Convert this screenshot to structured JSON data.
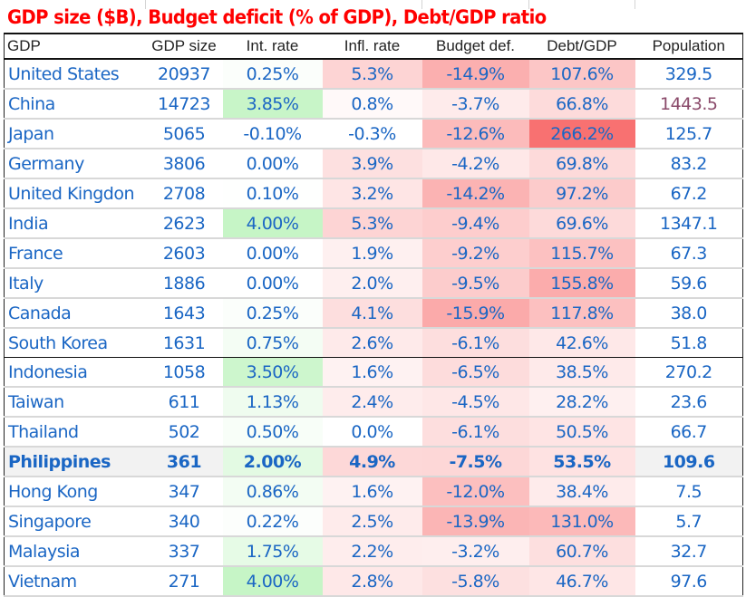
{
  "title": "GDP size ($B), Budget deficit (% of GDP), Debt/GDP ratio",
  "headers": [
    "GDP",
    "GDP size",
    "Int. rate",
    "Infl. rate",
    "Budget def.",
    "Debt/GDP",
    "Population"
  ],
  "colors": {
    "text": "#1a66c4",
    "title": "#ff0000",
    "highlight_row_bg": "#f2f2f2",
    "green_max": "#c6f5c6",
    "red_max": "#f87171",
    "pop_outlier": "#8a4a6a"
  },
  "rows": [
    {
      "name": "United States",
      "gdp": "20937",
      "int": "0.25%",
      "infl": "5.3%",
      "budget": "-14.9%",
      "debt": "107.6%",
      "pop": "329.5"
    },
    {
      "name": "China",
      "gdp": "14723",
      "int": "3.85%",
      "infl": "0.8%",
      "budget": "-3.7%",
      "debt": "66.8%",
      "pop": "1443.5",
      "pop_alt": true
    },
    {
      "name": "Japan",
      "gdp": "5065",
      "int": "-0.10%",
      "infl": "-0.3%",
      "budget": "-12.6%",
      "debt": "266.2%",
      "pop": "125.7"
    },
    {
      "name": "Germany",
      "gdp": "3806",
      "int": "0.00%",
      "infl": "3.9%",
      "budget": "-4.2%",
      "debt": "69.8%",
      "pop": "83.2"
    },
    {
      "name": "United Kingdon",
      "gdp": "2708",
      "int": "0.10%",
      "infl": "3.2%",
      "budget": "-14.2%",
      "debt": "97.2%",
      "pop": "67.2"
    },
    {
      "name": "India",
      "gdp": "2623",
      "int": "4.00%",
      "infl": "5.3%",
      "budget": "-9.4%",
      "debt": "69.6%",
      "pop": "1347.1"
    },
    {
      "name": "France",
      "gdp": "2603",
      "int": "0.00%",
      "infl": "1.9%",
      "budget": "-9.2%",
      "debt": "115.7%",
      "pop": "67.3"
    },
    {
      "name": "Italy",
      "gdp": "1886",
      "int": "0.00%",
      "infl": "2.0%",
      "budget": "-9.5%",
      "debt": "155.8%",
      "pop": "59.6"
    },
    {
      "name": "Canada",
      "gdp": "1643",
      "int": "0.25%",
      "infl": "4.1%",
      "budget": "-15.9%",
      "debt": "117.8%",
      "pop": "38.0"
    },
    {
      "name": "South Korea",
      "gdp": "1631",
      "int": "0.75%",
      "infl": "2.6%",
      "budget": "-6.1%",
      "debt": "42.6%",
      "pop": "51.8",
      "separator": true
    },
    {
      "name": "Indonesia",
      "gdp": "1058",
      "int": "3.50%",
      "infl": "1.6%",
      "budget": "-6.5%",
      "debt": "38.5%",
      "pop": "270.2"
    },
    {
      "name": "Taiwan",
      "gdp": "611",
      "int": "1.13%",
      "infl": "2.4%",
      "budget": "-4.5%",
      "debt": "28.2%",
      "pop": "23.6"
    },
    {
      "name": "Thailand",
      "gdp": "502",
      "int": "0.50%",
      "infl": "0.0%",
      "budget": "-6.1%",
      "debt": "50.5%",
      "pop": "66.7"
    },
    {
      "name": "Philippines",
      "gdp": "361",
      "int": "2.00%",
      "infl": "4.9%",
      "budget": "-7.5%",
      "debt": "53.5%",
      "pop": "109.6",
      "highlight": true
    },
    {
      "name": "Hong Kong",
      "gdp": "347",
      "int": "0.86%",
      "infl": "1.6%",
      "budget": "-12.0%",
      "debt": "38.4%",
      "pop": "7.5"
    },
    {
      "name": "Singapore",
      "gdp": "340",
      "int": "0.22%",
      "infl": "2.5%",
      "budget": "-13.9%",
      "debt": "131.0%",
      "pop": "5.7"
    },
    {
      "name": "Malaysia",
      "gdp": "337",
      "int": "1.75%",
      "infl": "2.2%",
      "budget": "-3.2%",
      "debt": "60.7%",
      "pop": "32.7"
    },
    {
      "name": "Vietnam",
      "gdp": "271",
      "int": "4.00%",
      "infl": "2.8%",
      "budget": "-5.8%",
      "debt": "46.7%",
      "pop": "97.6"
    }
  ]
}
